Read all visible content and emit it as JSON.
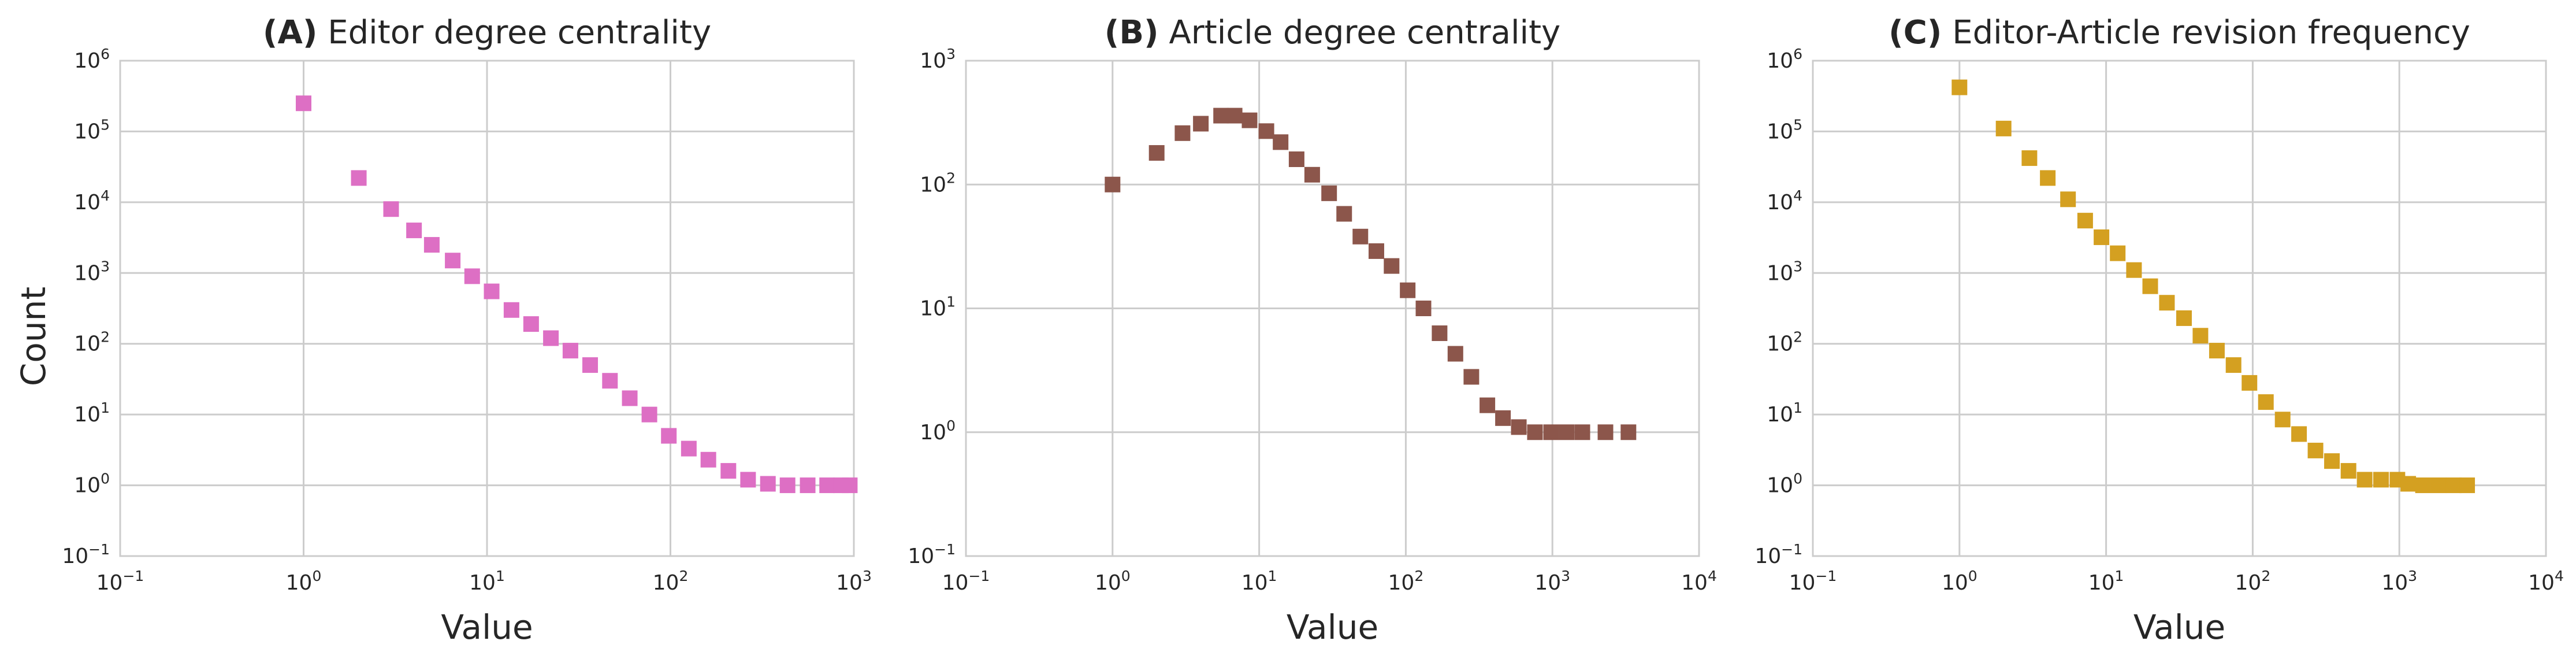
{
  "figure": {
    "y_axis_label": "Count",
    "x_axis_label": "Value"
  },
  "chart_data": [
    {
      "type": "scatter",
      "panel_tag": "(A)",
      "title": "Editor degree centrality",
      "xlabel": "Value",
      "ylabel": "Count",
      "xscale": "log",
      "yscale": "log",
      "xlim": [
        0.1,
        1000
      ],
      "ylim": [
        0.1,
        1000000
      ],
      "xticks": [
        "10^-1",
        "10^0",
        "10^1",
        "10^2",
        "10^3"
      ],
      "yticks": [
        "10^-1",
        "10^0",
        "10^1",
        "10^2",
        "10^3",
        "10^4",
        "10^5",
        "10^6"
      ],
      "grid": true,
      "marker": "square",
      "color": "#dd6fc4",
      "series": [
        {
          "x": [
            1,
            2,
            3,
            4,
            5,
            6.5,
            8.3,
            10.6,
            13.6,
            17.4,
            22.3,
            28.5,
            36.5,
            46.8,
            60,
            76.8,
            98,
            126,
            161,
            207,
            265,
            340,
            435,
            560,
            715,
            850,
            950
          ],
          "y": [
            250000,
            22000,
            8000,
            4000,
            2500,
            1500,
            900,
            550,
            300,
            190,
            120,
            80,
            50,
            30,
            17,
            10,
            5,
            3.3,
            2.3,
            1.6,
            1.2,
            1.05,
            1.0,
            1.0,
            1.0,
            1.0,
            1.0
          ]
        }
      ]
    },
    {
      "type": "scatter",
      "panel_tag": "(B)",
      "title": "Article degree centrality",
      "xlabel": "Value",
      "ylabel": "",
      "xscale": "log",
      "yscale": "log",
      "xlim": [
        0.1,
        10000
      ],
      "ylim": [
        0.1,
        1000
      ],
      "xticks": [
        "10^-1",
        "10^0",
        "10^1",
        "10^2",
        "10^3",
        "10^4"
      ],
      "yticks": [
        "10^-1",
        "10^0",
        "10^1",
        "10^2",
        "10^3"
      ],
      "grid": true,
      "marker": "square",
      "color": "#8c564b",
      "series": [
        {
          "x": [
            1,
            2,
            3,
            4,
            5.5,
            6.8,
            8.6,
            11.2,
            14,
            18,
            23,
            30,
            38,
            49,
            63,
            80,
            103,
            132,
            170,
            218,
            280,
            360,
            460,
            590,
            760,
            980,
            1250,
            1600,
            2300,
            3300
          ],
          "y": [
            100,
            180,
            260,
            310,
            360,
            360,
            330,
            270,
            220,
            160,
            120,
            85,
            58,
            38,
            29,
            22,
            14,
            10,
            6.3,
            4.3,
            2.8,
            1.65,
            1.3,
            1.1,
            1.0,
            1.0,
            1.0,
            1.0,
            1.0,
            1.0
          ]
        }
      ]
    },
    {
      "type": "scatter",
      "panel_tag": "(C)",
      "title": "Editor-Article revision frequency",
      "xlabel": "Value",
      "ylabel": "",
      "xscale": "log",
      "yscale": "log",
      "xlim": [
        0.1,
        10000
      ],
      "ylim": [
        0.1,
        1000000
      ],
      "xticks": [
        "10^-1",
        "10^0",
        "10^1",
        "10^2",
        "10^3",
        "10^4"
      ],
      "yticks": [
        "10^-1",
        "10^0",
        "10^1",
        "10^2",
        "10^3",
        "10^4",
        "10^5",
        "10^6"
      ],
      "grid": true,
      "marker": "square",
      "color": "#d4a021",
      "series": [
        {
          "x": [
            1,
            2,
            3,
            4,
            5.5,
            7.2,
            9.3,
            12,
            15.5,
            20,
            26,
            34,
            44,
            57,
            74,
            95,
            123,
            160,
            207,
            268,
            347,
            450,
            580,
            750,
            970,
            1150,
            1450,
            1850,
            2350,
            2900
          ],
          "y": [
            420000,
            110000,
            42000,
            22000,
            11000,
            5500,
            3200,
            1900,
            1100,
            650,
            380,
            230,
            130,
            80,
            50,
            28,
            15,
            8.5,
            5.3,
            3.1,
            2.2,
            1.6,
            1.2,
            1.2,
            1.2,
            1.05,
            1.0,
            1.0,
            1.0,
            1.0
          ]
        }
      ]
    }
  ]
}
